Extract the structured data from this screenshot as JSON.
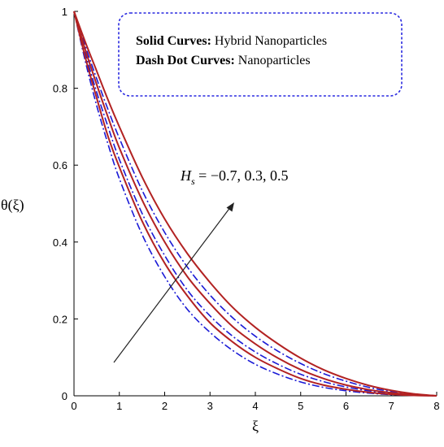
{
  "chart_data": {
    "type": "line",
    "xlabel": "ξ",
    "ylabel": "θ(ξ)",
    "xlim": [
      0,
      8
    ],
    "ylim": [
      0,
      1
    ],
    "xticks": [
      "0",
      "1",
      "2",
      "3",
      "4",
      "5",
      "6",
      "7",
      "8"
    ],
    "yticks": [
      "0",
      "0.2",
      "0.4",
      "0.6",
      "0.8",
      "1"
    ],
    "grid": false,
    "legend_box": {
      "line1_bold": "Solid Curves:",
      "line1_rest": " Hybrid Nanoparticles",
      "line2_bold": "Dash Dot Curves:",
      "line2_rest": " Nanoparticles"
    },
    "annotation": {
      "symbol": "H",
      "subscript": "s",
      "text": " = −0.7, 0.3, 0.5"
    },
    "colors": {
      "solid": "#b22222",
      "dashdot": "#1a1ad6",
      "axis": "#000000",
      "legend_border": "#2a2ae0"
    },
    "series": [
      {
        "style": "solid",
        "x": [
          0,
          0.25,
          0.5,
          0.75,
          1,
          1.5,
          2,
          2.5,
          3,
          3.5,
          4,
          4.5,
          5,
          5.5,
          6,
          6.5,
          7,
          7.5,
          8
        ],
        "y": [
          1,
          0.88,
          0.775,
          0.675,
          0.595,
          0.455,
          0.345,
          0.26,
          0.19,
          0.14,
          0.1,
          0.07,
          0.045,
          0.028,
          0.017,
          0.009,
          0.004,
          0.001,
          0
        ]
      },
      {
        "style": "solid",
        "x": [
          0,
          0.25,
          0.5,
          0.75,
          1,
          1.5,
          2,
          2.5,
          3,
          3.5,
          4,
          4.5,
          5,
          5.5,
          6,
          6.5,
          7,
          7.5,
          8
        ],
        "y": [
          1,
          0.9,
          0.81,
          0.725,
          0.645,
          0.51,
          0.4,
          0.31,
          0.24,
          0.18,
          0.135,
          0.098,
          0.068,
          0.045,
          0.028,
          0.016,
          0.008,
          0.003,
          0
        ]
      },
      {
        "style": "solid",
        "x": [
          0,
          0.25,
          0.5,
          0.75,
          1,
          1.5,
          2,
          2.5,
          3,
          3.5,
          4,
          4.5,
          5,
          5.5,
          6,
          6.5,
          7,
          7.5,
          8
        ],
        "y": [
          1,
          0.92,
          0.845,
          0.77,
          0.7,
          0.57,
          0.46,
          0.37,
          0.295,
          0.23,
          0.178,
          0.135,
          0.098,
          0.068,
          0.045,
          0.027,
          0.014,
          0.005,
          0
        ]
      },
      {
        "style": "dashdot",
        "x": [
          0,
          0.25,
          0.5,
          0.75,
          1,
          1.5,
          2,
          2.5,
          3,
          3.5,
          4,
          4.5,
          5,
          5.5,
          6,
          6.5,
          7,
          7.5,
          8
        ],
        "y": [
          1,
          0.87,
          0.755,
          0.655,
          0.565,
          0.42,
          0.31,
          0.225,
          0.165,
          0.118,
          0.082,
          0.056,
          0.036,
          0.022,
          0.013,
          0.007,
          0.003,
          0.001,
          0
        ]
      },
      {
        "style": "dashdot",
        "x": [
          0,
          0.25,
          0.5,
          0.75,
          1,
          1.5,
          2,
          2.5,
          3,
          3.5,
          4,
          4.5,
          5,
          5.5,
          6,
          6.5,
          7,
          7.5,
          8
        ],
        "y": [
          1,
          0.89,
          0.79,
          0.7,
          0.615,
          0.475,
          0.365,
          0.275,
          0.208,
          0.155,
          0.114,
          0.082,
          0.056,
          0.037,
          0.023,
          0.013,
          0.006,
          0.002,
          0
        ]
      },
      {
        "style": "dashdot",
        "x": [
          0,
          0.25,
          0.5,
          0.75,
          1,
          1.5,
          2,
          2.5,
          3,
          3.5,
          4,
          4.5,
          5,
          5.5,
          6,
          6.5,
          7,
          7.5,
          8
        ],
        "y": [
          1,
          0.91,
          0.825,
          0.745,
          0.67,
          0.535,
          0.425,
          0.335,
          0.262,
          0.203,
          0.155,
          0.116,
          0.084,
          0.058,
          0.038,
          0.022,
          0.011,
          0.004,
          0
        ]
      }
    ]
  }
}
